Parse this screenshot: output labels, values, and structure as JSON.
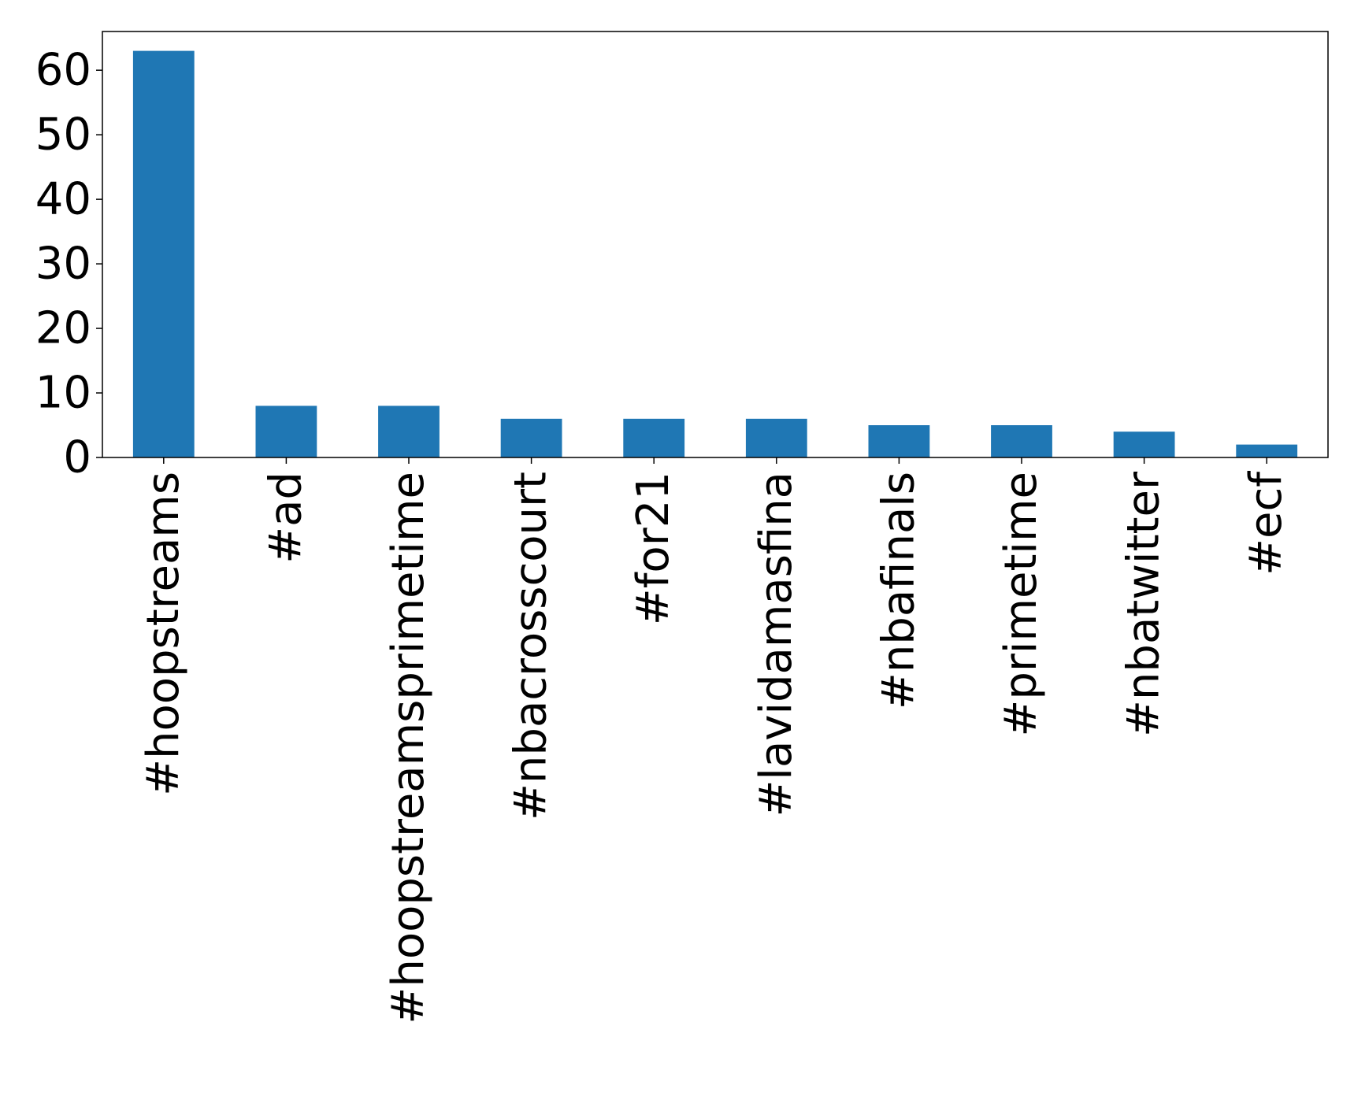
{
  "chart_data": {
    "type": "bar",
    "categories": [
      "#hoopstreams",
      "#ad",
      "#hoopstreamsprimetime",
      "#nbacrosscourt",
      "#for21",
      "#lavidamasfina",
      "#nbafinals",
      "#primetime",
      "#nbatwitter",
      "#ecf"
    ],
    "values": [
      63,
      8,
      8,
      6,
      6,
      6,
      5,
      5,
      4,
      2
    ],
    "ylim": [
      0,
      66
    ],
    "yticks": [
      0,
      10,
      20,
      30,
      40,
      50,
      60
    ],
    "grid": false,
    "legend": "none",
    "bar_color": "#1f77b4",
    "xlabel": "",
    "ylabel": "",
    "title": ""
  }
}
